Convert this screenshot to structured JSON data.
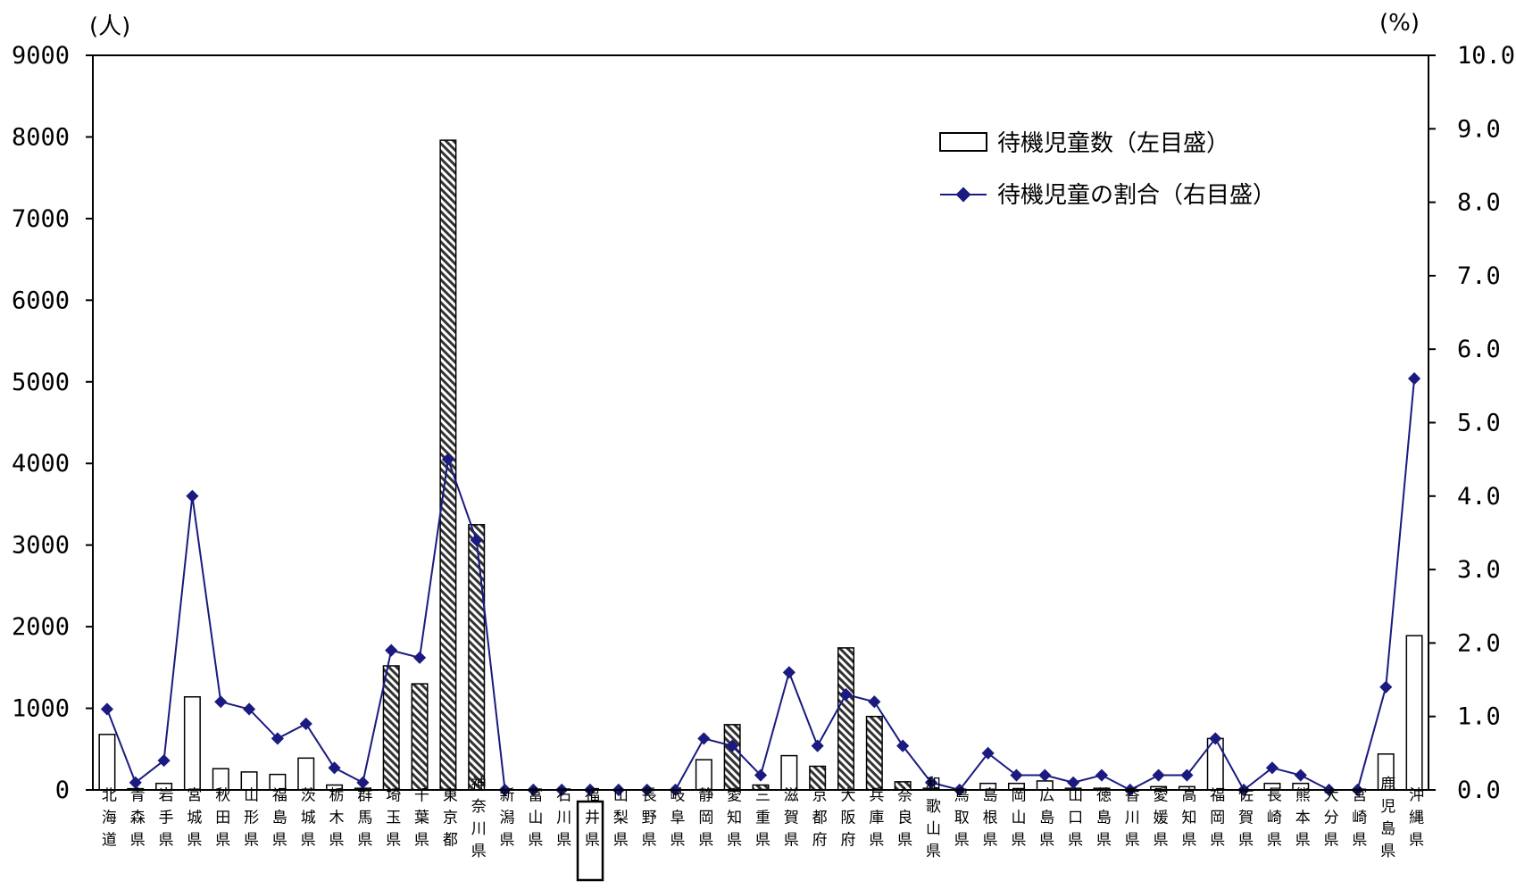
{
  "chart_data": {
    "type": "bar",
    "title": "",
    "y_left_unit": "(人)",
    "y_right_unit": "(%)",
    "ylim_left": [
      0,
      9000
    ],
    "ylim_right": [
      0,
      10
    ],
    "y_left_ticks": [
      "0",
      "1000",
      "2000",
      "3000",
      "4000",
      "5000",
      "6000",
      "7000",
      "8000",
      "9000"
    ],
    "y_right_ticks": [
      "0.0",
      "1.0",
      "2.0",
      "3.0",
      "4.0",
      "5.0",
      "6.0",
      "7.0",
      "8.0",
      "9.0",
      "10.0"
    ],
    "highlighted_category": "福井県",
    "categories": [
      "北海道",
      "青森県",
      "岩手県",
      "宮城県",
      "秋田県",
      "山形県",
      "福島県",
      "茨城県",
      "栃木県",
      "群馬県",
      "埼玉県",
      "千葉県",
      "東京都",
      "神奈川県",
      "新潟県",
      "富山県",
      "石川県",
      "福井県",
      "山梨県",
      "長野県",
      "岐阜県",
      "静岡県",
      "愛知県",
      "三重県",
      "滋賀県",
      "京都府",
      "大阪府",
      "兵庫県",
      "奈良県",
      "和歌山県",
      "鳥取県",
      "島根県",
      "岡山県",
      "広島県",
      "山口県",
      "徳島県",
      "香川県",
      "愛媛県",
      "高知県",
      "福岡県",
      "佐賀県",
      "長崎県",
      "熊本県",
      "大分県",
      "宮崎県",
      "鹿児島県",
      "沖縄県"
    ],
    "hatched": [
      0,
      0,
      0,
      0,
      0,
      0,
      0,
      0,
      0,
      0,
      1,
      1,
      1,
      1,
      0,
      0,
      0,
      0,
      0,
      0,
      0,
      0,
      1,
      1,
      0,
      1,
      1,
      1,
      1,
      0,
      0,
      0,
      0,
      0,
      0,
      0,
      0,
      0,
      0,
      0,
      0,
      0,
      0,
      0,
      0,
      0,
      0
    ],
    "series": [
      {
        "name": "待機児童数（左目盛）",
        "axis": "left",
        "kind": "bar",
        "values": [
          680,
          15,
          80,
          1140,
          260,
          220,
          190,
          390,
          60,
          20,
          1520,
          1300,
          7960,
          3250,
          0,
          0,
          0,
          0,
          0,
          0,
          0,
          370,
          800,
          60,
          420,
          290,
          1740,
          900,
          100,
          20,
          0,
          80,
          80,
          110,
          20,
          20,
          0,
          40,
          40,
          630,
          0,
          80,
          80,
          0,
          0,
          440,
          1890
        ]
      },
      {
        "name": "待機児童の割合（右目盛）",
        "axis": "right",
        "kind": "line",
        "values": [
          1.1,
          0.1,
          0.4,
          4.0,
          1.2,
          1.1,
          0.7,
          0.9,
          0.3,
          0.1,
          1.9,
          1.8,
          4.5,
          3.4,
          0.0,
          0.0,
          0.0,
          0.0,
          0.0,
          0.0,
          0.0,
          0.7,
          0.6,
          0.2,
          1.6,
          0.6,
          1.3,
          1.2,
          0.6,
          0.1,
          0.0,
          0.5,
          0.2,
          0.2,
          0.1,
          0.2,
          0.0,
          0.2,
          0.2,
          0.7,
          0.0,
          0.3,
          0.2,
          0.0,
          0.0,
          1.4,
          5.6
        ]
      }
    ],
    "colors": {
      "line": "#1a1a80",
      "bar_fill": "#ffffff",
      "bar_stroke": "#000000"
    },
    "legend_position": "top-right"
  }
}
